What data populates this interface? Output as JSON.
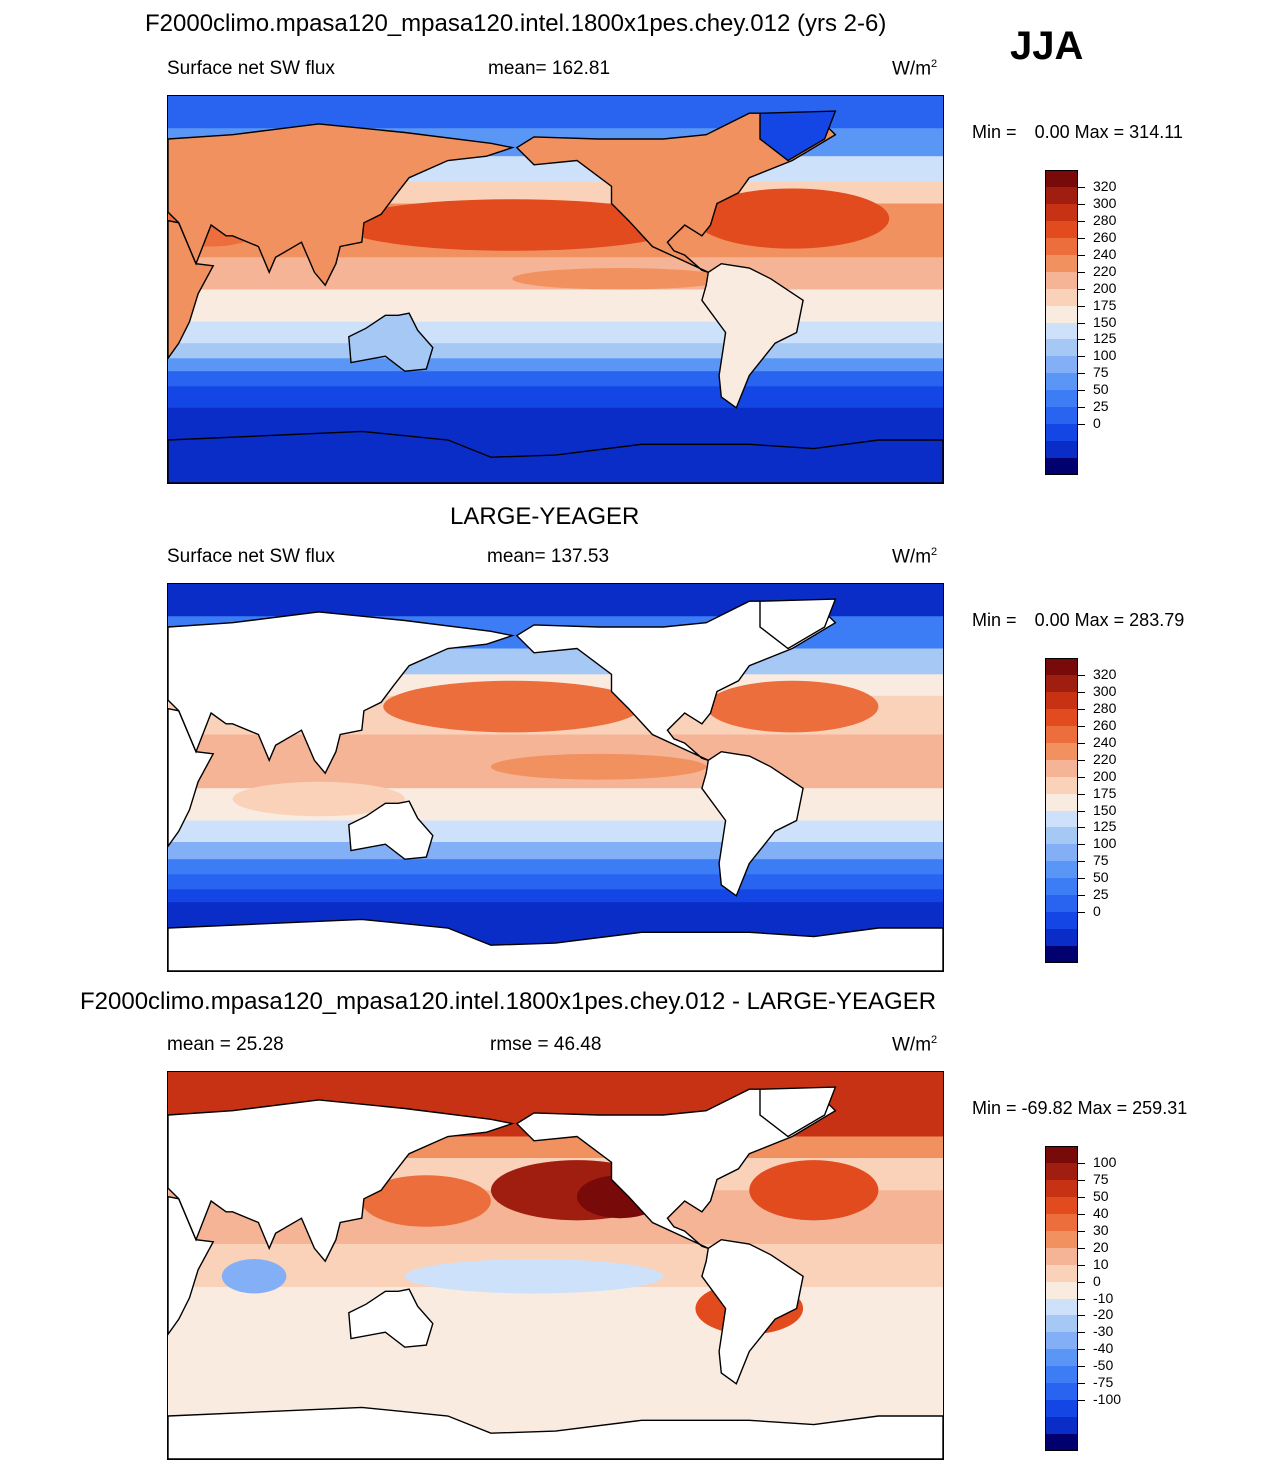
{
  "season": "JJA",
  "colors": {
    "abs_scale": [
      "#00006e",
      "#0a2dc8",
      "#1446e6",
      "#2864f0",
      "#3c7cf5",
      "#5a96f5",
      "#82aff5",
      "#a5c8f5",
      "#cde1fa",
      "#faebe1",
      "#fad2b9",
      "#f5b496",
      "#f0915f",
      "#eb6e3c",
      "#e14b1e",
      "#c83214",
      "#a01e0f",
      "#780a0a"
    ],
    "diff_scale": [
      "#00006e",
      "#0a2dc8",
      "#1446e6",
      "#2864f0",
      "#3c7cf5",
      "#5a96f5",
      "#82aff5",
      "#a5c8f5",
      "#cde1fa",
      "#faebe1",
      "#fad2b9",
      "#f5b496",
      "#f0915f",
      "#eb6e3c",
      "#e14b1e",
      "#c83214",
      "#a01e0f",
      "#780a0a"
    ],
    "land": "#ffffff",
    "coast": "#000000"
  },
  "panels": [
    {
      "title": "F2000climo.mpasa120_mpasa120.intel.1800x1pes.chey.012 (yrs 2-6)",
      "left_label": "Surface net SW flux",
      "center_label": "mean= 162.81",
      "units": "W/m",
      "units_sup": "2",
      "min_label": "Min =",
      "min_value": "0.00",
      "max_label": "Max =",
      "max_value": "314.11",
      "levels": [
        "320",
        "300",
        "280",
        "260",
        "240",
        "220",
        "200",
        "175",
        "150",
        "125",
        "100",
        "75",
        "50",
        "25",
        "0"
      ],
      "kind": "model"
    },
    {
      "title": "LARGE-YEAGER",
      "left_label": "Surface net SW flux",
      "center_label": "mean= 137.53",
      "units": "W/m",
      "units_sup": "2",
      "min_label": "Min =",
      "min_value": "0.00",
      "max_label": "Max =",
      "max_value": "283.79",
      "levels": [
        "320",
        "300",
        "280",
        "260",
        "240",
        "220",
        "200",
        "175",
        "150",
        "125",
        "100",
        "75",
        "50",
        "25",
        "0"
      ],
      "kind": "obs"
    },
    {
      "title": "F2000climo.mpasa120_mpasa120.intel.1800x1pes.chey.012 - LARGE-YEAGER",
      "left_label": "mean =  25.28",
      "center_label": "rmse =  46.48",
      "units": "W/m",
      "units_sup": "2",
      "min_label": "Min =",
      "min_value": "-69.82",
      "max_label": "Max =",
      "max_value": "259.31",
      "levels": [
        "100",
        "75",
        "50",
        "40",
        "30",
        "20",
        "10",
        "0",
        "-10",
        "-20",
        "-30",
        "-40",
        "-50",
        "-75",
        "-100"
      ],
      "kind": "diff"
    }
  ]
}
